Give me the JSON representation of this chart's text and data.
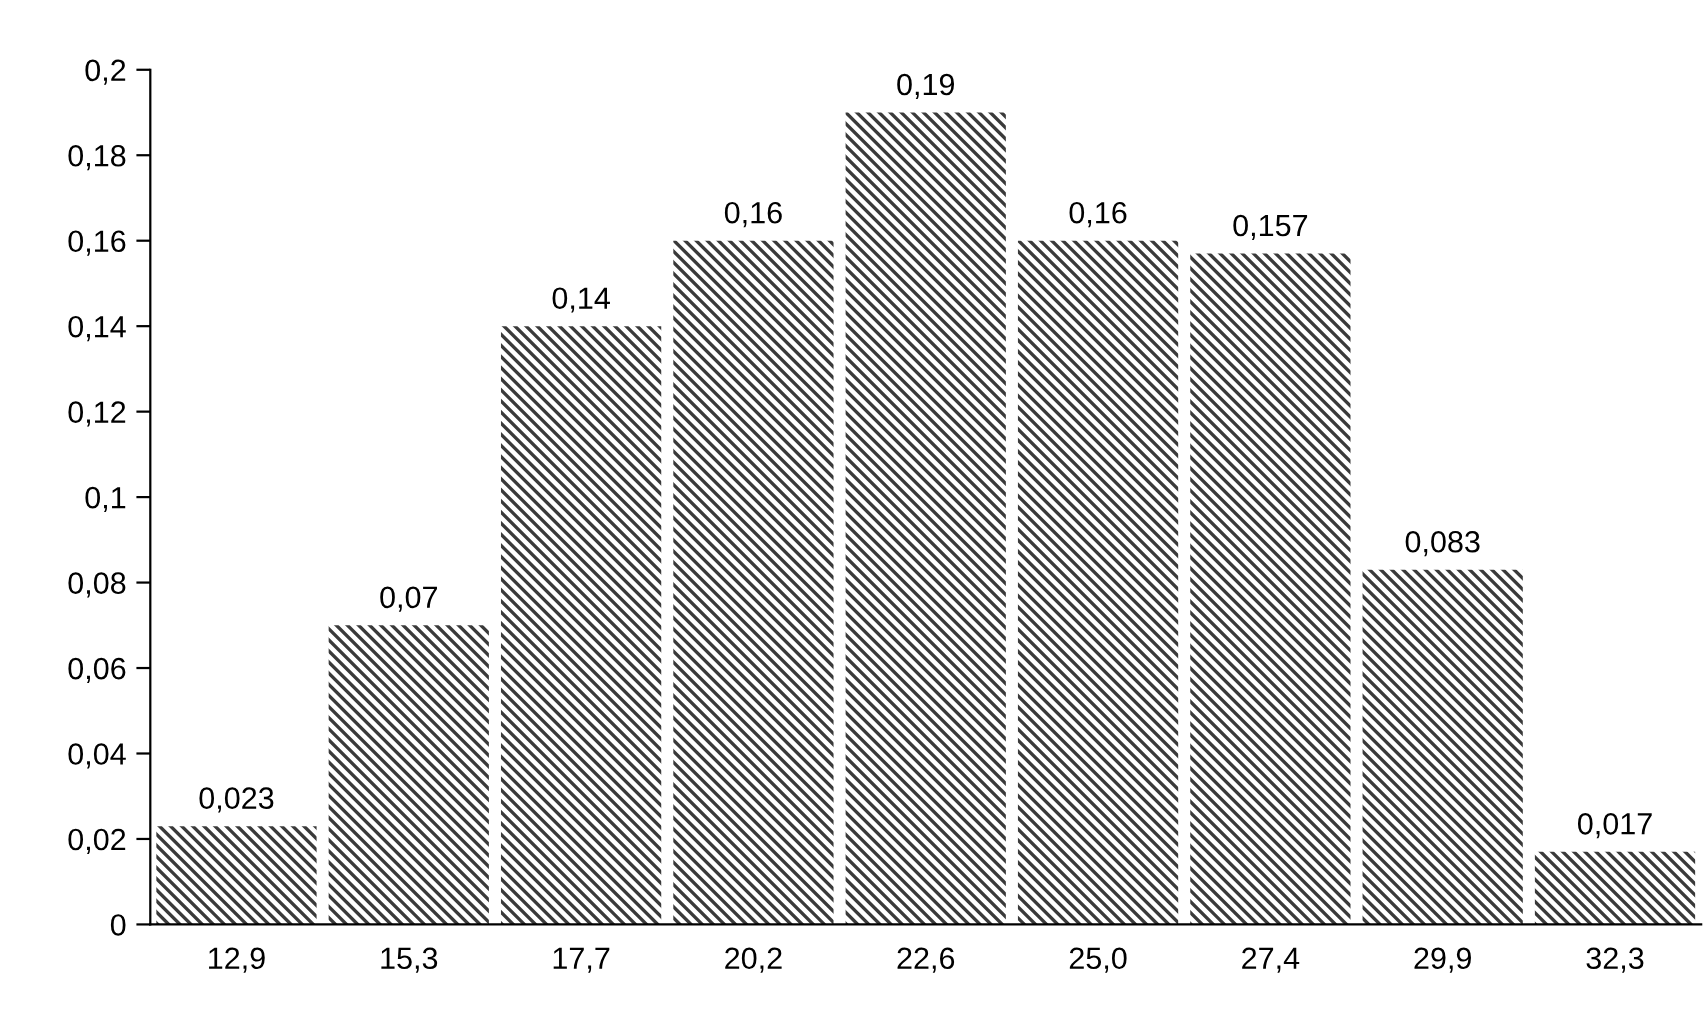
{
  "chart_data": {
    "type": "bar",
    "categories": [
      "12,9",
      "15,3",
      "17,7",
      "20,2",
      "22,6",
      "25,0",
      "27,4",
      "29,9",
      "32,3"
    ],
    "values": [
      0.023,
      0.07,
      0.14,
      0.16,
      0.19,
      0.16,
      0.157,
      0.083,
      0.017
    ],
    "value_labels": [
      "0,023",
      "0,07",
      "0,14",
      "0,16",
      "0,19",
      "0,16",
      "0,157",
      "0,083",
      "0,017"
    ],
    "color": "#3a3a3a",
    "ylim": [
      0,
      0.2
    ],
    "yticks": [
      {
        "value": 0,
        "label": "0"
      },
      {
        "value": 0.02,
        "label": "0,02"
      },
      {
        "value": 0.04,
        "label": "0,04"
      },
      {
        "value": 0.06,
        "label": "0,06"
      },
      {
        "value": 0.08,
        "label": "0,08"
      },
      {
        "value": 0.1,
        "label": "0,1"
      },
      {
        "value": 0.12,
        "label": "0,12"
      },
      {
        "value": 0.14,
        "label": "0,14"
      },
      {
        "value": 0.16,
        "label": "0,16"
      },
      {
        "value": 0.18,
        "label": "0,18"
      },
      {
        "value": 0.2,
        "label": "0,2"
      }
    ],
    "grid": false,
    "legend": false
  }
}
